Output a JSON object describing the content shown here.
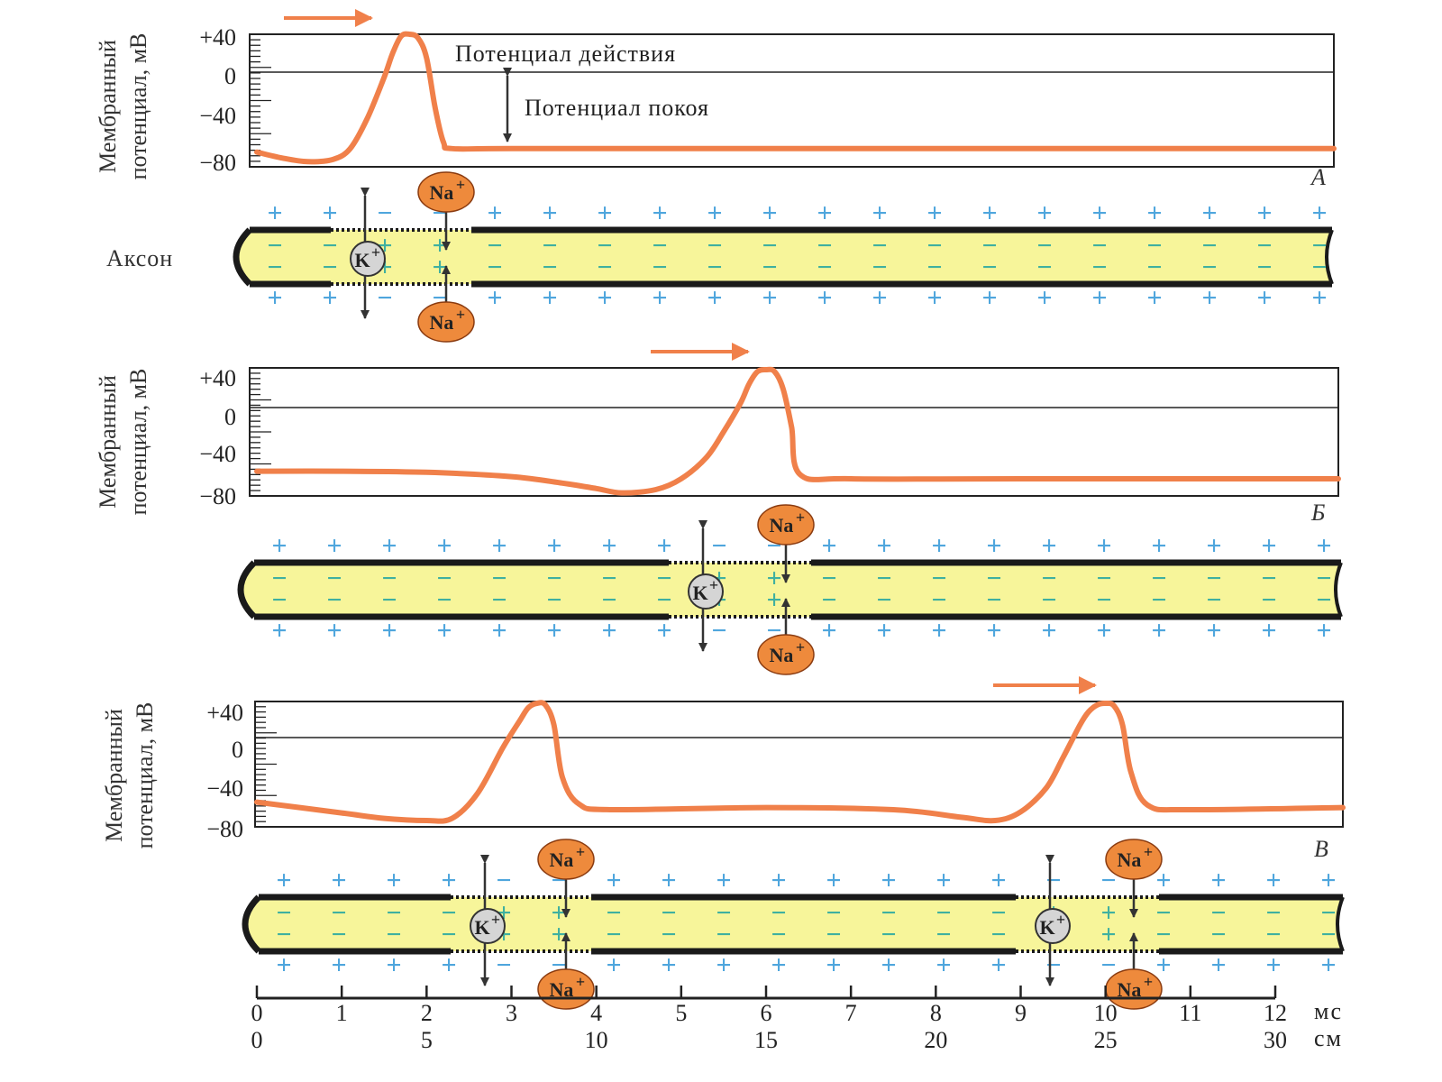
{
  "colors": {
    "curve": "#f0804a",
    "arrow": "#f0804a",
    "axon_fill": "#f7f59a",
    "axon_stroke": "#1a1a1a",
    "plus": "#4fa6dd",
    "minus_inside": "#3fb0a0",
    "ion_na": "#ee8a3c",
    "ion_k": "#d5d5d5",
    "grid": "#222222"
  },
  "y_axis": {
    "label_line1": "Мембранный",
    "label_line2": "потенциал, мВ",
    "ticks": [
      "+40",
      "0",
      "−40",
      "−80"
    ]
  },
  "panels": [
    {
      "letter": "A",
      "annotation_action": "Потенциал действия",
      "annotation_rest": "Потенциал покоя",
      "axon_label": "Аксон"
    },
    {
      "letter": "Б"
    },
    {
      "letter": "В"
    }
  ],
  "ions": {
    "na": "Na",
    "k": "K",
    "charge": "+"
  },
  "x_axis": {
    "ms_ticks": [
      "0",
      "1",
      "2",
      "3",
      "4",
      "5",
      "6",
      "7",
      "8",
      "9",
      "10",
      "11",
      "12"
    ],
    "ms_unit": "мс",
    "cm_ticks": [
      "0",
      "5",
      "10",
      "15",
      "20",
      "25",
      "30"
    ],
    "cm_unit": "см"
  },
  "chart_data": [
    {
      "type": "line",
      "panel": "A",
      "xlabel": "",
      "ylabel": "Мембранный потенциал, мВ",
      "ylim": [
        -80,
        40
      ],
      "yticks": [
        40,
        0,
        -40,
        -80
      ],
      "x_unit": "мс",
      "series": [
        {
          "x": [
            0,
            0.3,
            0.6,
            0.9,
            1.1,
            1.3,
            1.5,
            1.6,
            1.7,
            1.8,
            1.9,
            2.0,
            2.1,
            2.2,
            2.3,
            3,
            6,
            9,
            12.8
          ],
          "y": [
            -73,
            -78,
            -81,
            -79,
            -70,
            -45,
            -5,
            20,
            38,
            40,
            36,
            15,
            -35,
            -65,
            -70,
            -70,
            -70,
            -70,
            -70
          ]
        }
      ]
    },
    {
      "type": "line",
      "panel": "Б",
      "xlabel": "",
      "ylabel": "Мембранный потенциал, мВ",
      "ylim": [
        -80,
        40
      ],
      "yticks": [
        40,
        0,
        -40,
        -80
      ],
      "x_unit": "мс",
      "series": [
        {
          "x": [
            0,
            1,
            2,
            3,
            3.6,
            4.0,
            4.3,
            4.7,
            5.0,
            5.3,
            5.5,
            5.7,
            5.8,
            5.9,
            6.0,
            6.1,
            6.2,
            6.3,
            6.4,
            7,
            9,
            12.8
          ],
          "y": [
            -63,
            -63,
            -64,
            -68,
            -74,
            -79,
            -83,
            -80,
            -70,
            -50,
            -25,
            5,
            25,
            38,
            40,
            38,
            20,
            -20,
            -66,
            -70,
            -70,
            -70
          ]
        }
      ]
    },
    {
      "type": "line",
      "panel": "В",
      "xlabel": "",
      "ylabel": "Мембранный потенциал, мВ",
      "ylim": [
        -80,
        40
      ],
      "yticks": [
        40,
        0,
        -40,
        -80
      ],
      "x_unit": "мс",
      "series": [
        {
          "x": [
            0,
            1,
            1.5,
            2.0,
            2.3,
            2.6,
            2.9,
            3.1,
            3.2,
            3.3,
            3.4,
            3.5,
            3.6,
            3.8,
            4.2,
            6,
            7.5,
            8.3,
            8.7,
            9.0,
            9.3,
            9.5,
            9.7,
            9.8,
            9.9,
            10.0,
            10.1,
            10.2,
            10.3,
            10.5,
            11,
            12.8
          ],
          "y": [
            -63,
            -73,
            -78,
            -80,
            -78,
            -55,
            -10,
            20,
            35,
            40,
            38,
            15,
            -40,
            -65,
            -70,
            -68,
            -70,
            -77,
            -80,
            -72,
            -50,
            -20,
            15,
            30,
            38,
            40,
            37,
            15,
            -35,
            -66,
            -70,
            -68
          ]
        }
      ]
    }
  ]
}
